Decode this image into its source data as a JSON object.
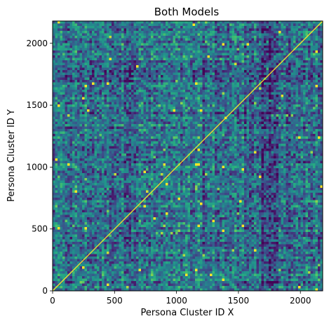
{
  "chart_data": {
    "type": "heatmap",
    "title": "Both Models",
    "xlabel": "Persona Cluster ID X",
    "ylabel": "Persona Cluster ID Y",
    "xlim": [
      0,
      2180
    ],
    "ylim": [
      0,
      2180
    ],
    "xticks": [
      0,
      500,
      1000,
      1500,
      2000
    ],
    "yticks": [
      0,
      500,
      1000,
      1500,
      2000
    ],
    "colormap": "viridis",
    "diagonal": "maximum (yellow)",
    "grid": false,
    "legend": "none"
  },
  "colors": {
    "low": "#3b2a7a",
    "mid": "#21908d",
    "high": "#fde725",
    "axis": "#000000",
    "background": "#ffffff"
  }
}
